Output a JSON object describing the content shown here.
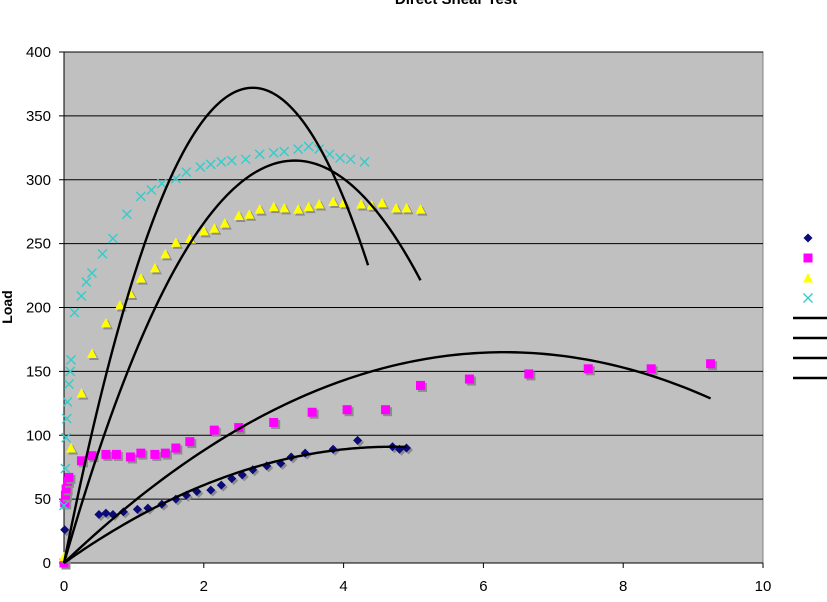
{
  "chart_data": {
    "type": "scatter",
    "title": "Direct Shear Test",
    "xlabel": "",
    "ylabel": "Load",
    "xlim": [
      0,
      10
    ],
    "ylim": [
      0,
      400
    ],
    "x_ticks": [
      "0",
      "2",
      "4",
      "6",
      "8",
      "10"
    ],
    "y_ticks": [
      "0",
      "50",
      "100",
      "150",
      "200",
      "250",
      "300",
      "350",
      "400"
    ],
    "grid": "horizontal",
    "background": "#c0c0c0",
    "legend_placement": "right (cropped)",
    "series": [
      {
        "marker": "diamond",
        "color": "#0a0a78",
        "points": [
          [
            0.0,
            0
          ],
          [
            0.01,
            26
          ],
          [
            0.5,
            38
          ],
          [
            0.6,
            39
          ],
          [
            0.7,
            38
          ],
          [
            0.85,
            40
          ],
          [
            1.05,
            42
          ],
          [
            1.2,
            43
          ],
          [
            1.4,
            46
          ],
          [
            1.6,
            50
          ],
          [
            1.75,
            53
          ],
          [
            1.9,
            56
          ],
          [
            2.1,
            57
          ],
          [
            2.25,
            61
          ],
          [
            2.4,
            66
          ],
          [
            2.55,
            69
          ],
          [
            2.7,
            73
          ],
          [
            2.9,
            76
          ],
          [
            3.1,
            78
          ],
          [
            3.25,
            83
          ],
          [
            3.45,
            86
          ],
          [
            3.85,
            89
          ],
          [
            4.2,
            96
          ],
          [
            4.7,
            91
          ],
          [
            4.8,
            89
          ],
          [
            4.9,
            90
          ]
        ]
      },
      {
        "marker": "square",
        "color": "#ff00ff",
        "points": [
          [
            0.0,
            0
          ],
          [
            0.01,
            47
          ],
          [
            0.02,
            53
          ],
          [
            0.03,
            58
          ],
          [
            0.05,
            64
          ],
          [
            0.07,
            67
          ],
          [
            0.25,
            80
          ],
          [
            0.4,
            84
          ],
          [
            0.6,
            85
          ],
          [
            0.75,
            85
          ],
          [
            0.95,
            83
          ],
          [
            1.1,
            86
          ],
          [
            1.3,
            85
          ],
          [
            1.45,
            86
          ],
          [
            1.6,
            90
          ],
          [
            1.8,
            95
          ],
          [
            2.15,
            104
          ],
          [
            2.5,
            106
          ],
          [
            3.0,
            110
          ],
          [
            3.55,
            118
          ],
          [
            4.05,
            120
          ],
          [
            4.6,
            120
          ],
          [
            5.1,
            139
          ],
          [
            5.8,
            144
          ],
          [
            6.65,
            148
          ],
          [
            7.5,
            152
          ],
          [
            8.4,
            152
          ],
          [
            9.25,
            156
          ]
        ]
      },
      {
        "marker": "triangle",
        "color": "#ffff00",
        "points": [
          [
            0.0,
            5
          ],
          [
            0.1,
            90
          ],
          [
            0.25,
            133
          ],
          [
            0.4,
            164
          ],
          [
            0.6,
            188
          ],
          [
            0.8,
            202
          ],
          [
            0.95,
            211
          ],
          [
            1.1,
            223
          ],
          [
            1.3,
            231
          ],
          [
            1.45,
            242
          ],
          [
            1.6,
            251
          ],
          [
            1.8,
            254
          ],
          [
            2.0,
            260
          ],
          [
            2.15,
            262
          ],
          [
            2.3,
            266
          ],
          [
            2.5,
            272
          ],
          [
            2.65,
            273
          ],
          [
            2.8,
            277
          ],
          [
            3.0,
            279
          ],
          [
            3.15,
            278
          ],
          [
            3.35,
            277
          ],
          [
            3.5,
            279
          ],
          [
            3.65,
            281
          ],
          [
            3.85,
            283
          ],
          [
            4.0,
            282
          ],
          [
            4.25,
            281
          ],
          [
            4.4,
            280
          ],
          [
            4.55,
            282
          ],
          [
            4.75,
            278
          ],
          [
            4.9,
            278
          ],
          [
            5.1,
            277
          ]
        ]
      },
      {
        "marker": "x",
        "color": "#33cccc",
        "points": [
          [
            0.0,
            45
          ],
          [
            0.02,
            74
          ],
          [
            0.03,
            98
          ],
          [
            0.04,
            113
          ],
          [
            0.05,
            126
          ],
          [
            0.07,
            140
          ],
          [
            0.09,
            150
          ],
          [
            0.1,
            159
          ],
          [
            0.15,
            196
          ],
          [
            0.25,
            209
          ],
          [
            0.32,
            220
          ],
          [
            0.4,
            227
          ],
          [
            0.55,
            242
          ],
          [
            0.7,
            254
          ],
          [
            0.9,
            273
          ],
          [
            1.1,
            287
          ],
          [
            1.25,
            292
          ],
          [
            1.4,
            297
          ],
          [
            1.6,
            301
          ],
          [
            1.75,
            306
          ],
          [
            1.95,
            310
          ],
          [
            2.1,
            312
          ],
          [
            2.25,
            314
          ],
          [
            2.4,
            315
          ],
          [
            2.6,
            316
          ],
          [
            2.8,
            320
          ],
          [
            3.0,
            321
          ],
          [
            3.15,
            322
          ],
          [
            3.35,
            324
          ],
          [
            3.5,
            326
          ],
          [
            3.65,
            324
          ],
          [
            3.8,
            320
          ],
          [
            3.95,
            317
          ],
          [
            4.1,
            316
          ],
          [
            4.3,
            314
          ]
        ]
      }
    ],
    "fitted_curves": [
      {
        "color": "#000000",
        "peak": [
          2.7,
          372
        ],
        "x_range": [
          0,
          4.35
        ],
        "end_y": 245
      },
      {
        "color": "#000000",
        "peak": [
          3.3,
          315
        ],
        "x_range": [
          0,
          5.1
        ],
        "end_y": 227
      },
      {
        "color": "#000000",
        "peak": [
          6.3,
          165
        ],
        "x_range": [
          0,
          9.25
        ],
        "end_y": 127
      },
      {
        "color": "#000000",
        "peak": [
          4.7,
          91
        ],
        "x_range": [
          0,
          4.9
        ],
        "end_y": 91
      }
    ],
    "legend_entries": [
      {
        "marker": "diamond",
        "color": "#0a0a78"
      },
      {
        "marker": "square",
        "color": "#ff00ff"
      },
      {
        "marker": "triangle",
        "color": "#ffff00"
      },
      {
        "marker": "x",
        "color": "#33cccc"
      },
      {
        "marker": "line",
        "color": "#000000"
      },
      {
        "marker": "line",
        "color": "#000000"
      },
      {
        "marker": "line",
        "color": "#000000"
      },
      {
        "marker": "line",
        "color": "#000000"
      }
    ]
  }
}
